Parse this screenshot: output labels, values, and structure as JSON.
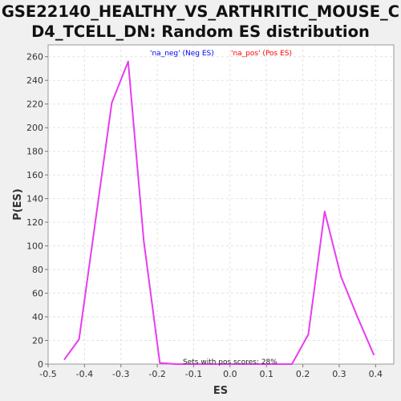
{
  "chart_data": {
    "type": "line",
    "title_line1": "GSE22140_HEALTHY_VS_ARTHRITIC_MOUSE_C",
    "title_line2": "D4_TCELL_DN: Random ES distribution",
    "xlabel": "ES",
    "ylabel": "P(ES)",
    "xlim": [
      -0.5,
      0.45
    ],
    "ylim": [
      0,
      270
    ],
    "xticks": [
      -0.5,
      -0.4,
      -0.3,
      -0.2,
      -0.1,
      0.0,
      0.1,
      0.2,
      0.3,
      0.4
    ],
    "xtick_labels": [
      "-0.5",
      "-0.4",
      "-0.3",
      "-0.2",
      "-0.1",
      "0.0",
      "0.1",
      "0.2",
      "0.3",
      "0.4"
    ],
    "yticks": [
      0,
      20,
      40,
      60,
      80,
      100,
      120,
      140,
      160,
      180,
      200,
      220,
      240,
      260
    ],
    "grid": true,
    "legend": [
      {
        "label": "'na_neg' (Neg ES)",
        "color": "#0000ff"
      },
      {
        "label": "'na_pos' (Pos ES)",
        "color": "#ff0000"
      }
    ],
    "series": [
      {
        "color": "#e83cf0",
        "x": [
          -0.455,
          -0.415,
          -0.325,
          -0.28,
          -0.237,
          -0.193,
          -0.15,
          -0.1,
          -0.05,
          0.0,
          0.05,
          0.1,
          0.17,
          0.215,
          0.26,
          0.305,
          0.35,
          0.395
        ],
        "y": [
          4,
          21,
          221,
          256,
          104,
          1,
          0,
          0,
          0,
          0,
          0,
          0,
          0,
          25,
          129,
          74,
          40,
          8
        ]
      }
    ],
    "annotation": "Sets with pos scores: 28%"
  }
}
